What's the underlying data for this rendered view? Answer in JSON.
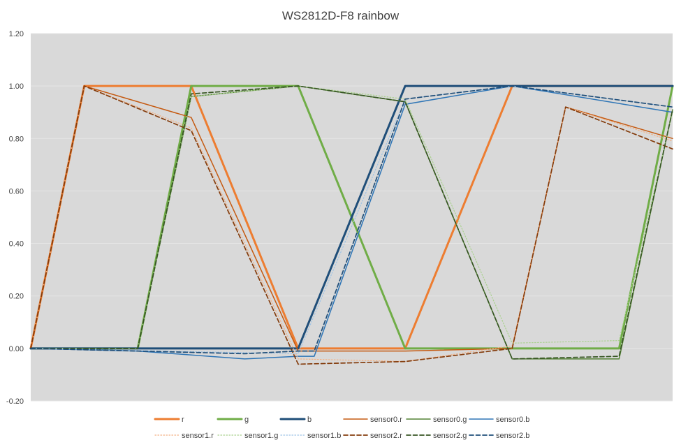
{
  "chart_data": {
    "type": "line",
    "title": "WS2812D-F8 rainbow",
    "xlabel": "",
    "ylabel": "",
    "ylim": [
      -0.2,
      1.2
    ],
    "yticks": [
      "-0.20",
      "0.00",
      "0.20",
      "0.40",
      "0.60",
      "0.80",
      "1.00",
      "1.20"
    ],
    "ytick_values": [
      -0.2,
      0,
      0.2,
      0.4,
      0.6,
      0.8,
      1.0,
      1.2
    ],
    "xlim": [
      0,
      12
    ],
    "grid": "horizontal",
    "legend_position": "bottom",
    "plot_background": "#d9d9d9",
    "series": [
      {
        "name": "r",
        "color": "#ed7d31",
        "dash": "solid",
        "width": 3,
        "x": [
          0,
          1,
          3,
          5,
          7,
          9,
          12
        ],
        "y": [
          0,
          1,
          1,
          0,
          0,
          1,
          1
        ]
      },
      {
        "name": "g",
        "color": "#70ad47",
        "dash": "solid",
        "width": 3,
        "x": [
          0,
          1,
          2,
          3,
          5,
          7,
          9,
          11,
          12
        ],
        "y": [
          0,
          0,
          0,
          1,
          1,
          0,
          0,
          0,
          1
        ]
      },
      {
        "name": "b",
        "color": "#1f4e79",
        "dash": "solid",
        "width": 3,
        "x": [
          0,
          5,
          7,
          12
        ],
        "y": [
          0,
          0,
          1,
          1
        ]
      },
      {
        "name": "sensor0.r",
        "color": "#c55a11",
        "dash": "solid",
        "width": 1.5,
        "x": [
          0,
          1,
          3,
          5,
          7,
          9,
          10,
          12
        ],
        "y": [
          0,
          1,
          0.88,
          -0.01,
          -0.01,
          0,
          0.92,
          0.8
        ]
      },
      {
        "name": "sensor0.g",
        "color": "#548235",
        "dash": "solid",
        "width": 1.5,
        "x": [
          0,
          1,
          2,
          3,
          5,
          7,
          9,
          11,
          12
        ],
        "y": [
          0,
          0,
          0,
          0.96,
          1.0,
          0.94,
          -0.04,
          -0.04,
          0.91
        ]
      },
      {
        "name": "sensor0.b",
        "color": "#2e75b6",
        "dash": "solid",
        "width": 1.5,
        "x": [
          0,
          2,
          4,
          5,
          5.3,
          7,
          9,
          12
        ],
        "y": [
          0,
          -0.01,
          -0.04,
          -0.03,
          -0.03,
          0.93,
          1.0,
          0.9
        ]
      },
      {
        "name": "sensor1.r",
        "color": "#f4b183",
        "dash": "dot",
        "width": 1.2,
        "x": [
          0,
          1,
          3,
          5,
          7,
          9,
          10,
          12
        ],
        "y": [
          0,
          1,
          0.84,
          -0.04,
          -0.05,
          0.01,
          0.92,
          0.79
        ]
      },
      {
        "name": "sensor1.g",
        "color": "#a9d18e",
        "dash": "dot",
        "width": 1.2,
        "x": [
          0,
          1,
          2,
          3,
          5,
          7,
          9,
          11,
          12
        ],
        "y": [
          0,
          0,
          0,
          0.96,
          1.0,
          0.95,
          0.02,
          0.03,
          0.9
        ]
      },
      {
        "name": "sensor1.b",
        "color": "#9dc3e6",
        "dash": "dot",
        "width": 1.2,
        "x": [
          0,
          5,
          7,
          9,
          12
        ],
        "y": [
          0,
          -0.02,
          0.95,
          1.0,
          0.92
        ]
      },
      {
        "name": "sensor2.r",
        "color": "#843c0c",
        "dash": "dash",
        "width": 1.7,
        "x": [
          0,
          1,
          3,
          5,
          7,
          9,
          10,
          12
        ],
        "y": [
          0,
          1,
          0.83,
          -0.06,
          -0.05,
          0,
          0.92,
          0.76
        ]
      },
      {
        "name": "sensor2.g",
        "color": "#375623",
        "dash": "dash",
        "width": 1.7,
        "x": [
          0,
          1,
          2,
          3,
          5,
          7,
          9,
          11,
          12
        ],
        "y": [
          0,
          0,
          0,
          0.97,
          1.0,
          0.94,
          -0.04,
          -0.03,
          0.91
        ]
      },
      {
        "name": "sensor2.b",
        "color": "#1f4e79",
        "dash": "dash",
        "width": 1.7,
        "x": [
          0,
          2,
          4,
          5,
          5.3,
          7,
          9,
          12
        ],
        "y": [
          0,
          -0.01,
          -0.02,
          -0.01,
          -0.01,
          0.95,
          1.0,
          0.92
        ]
      }
    ]
  }
}
